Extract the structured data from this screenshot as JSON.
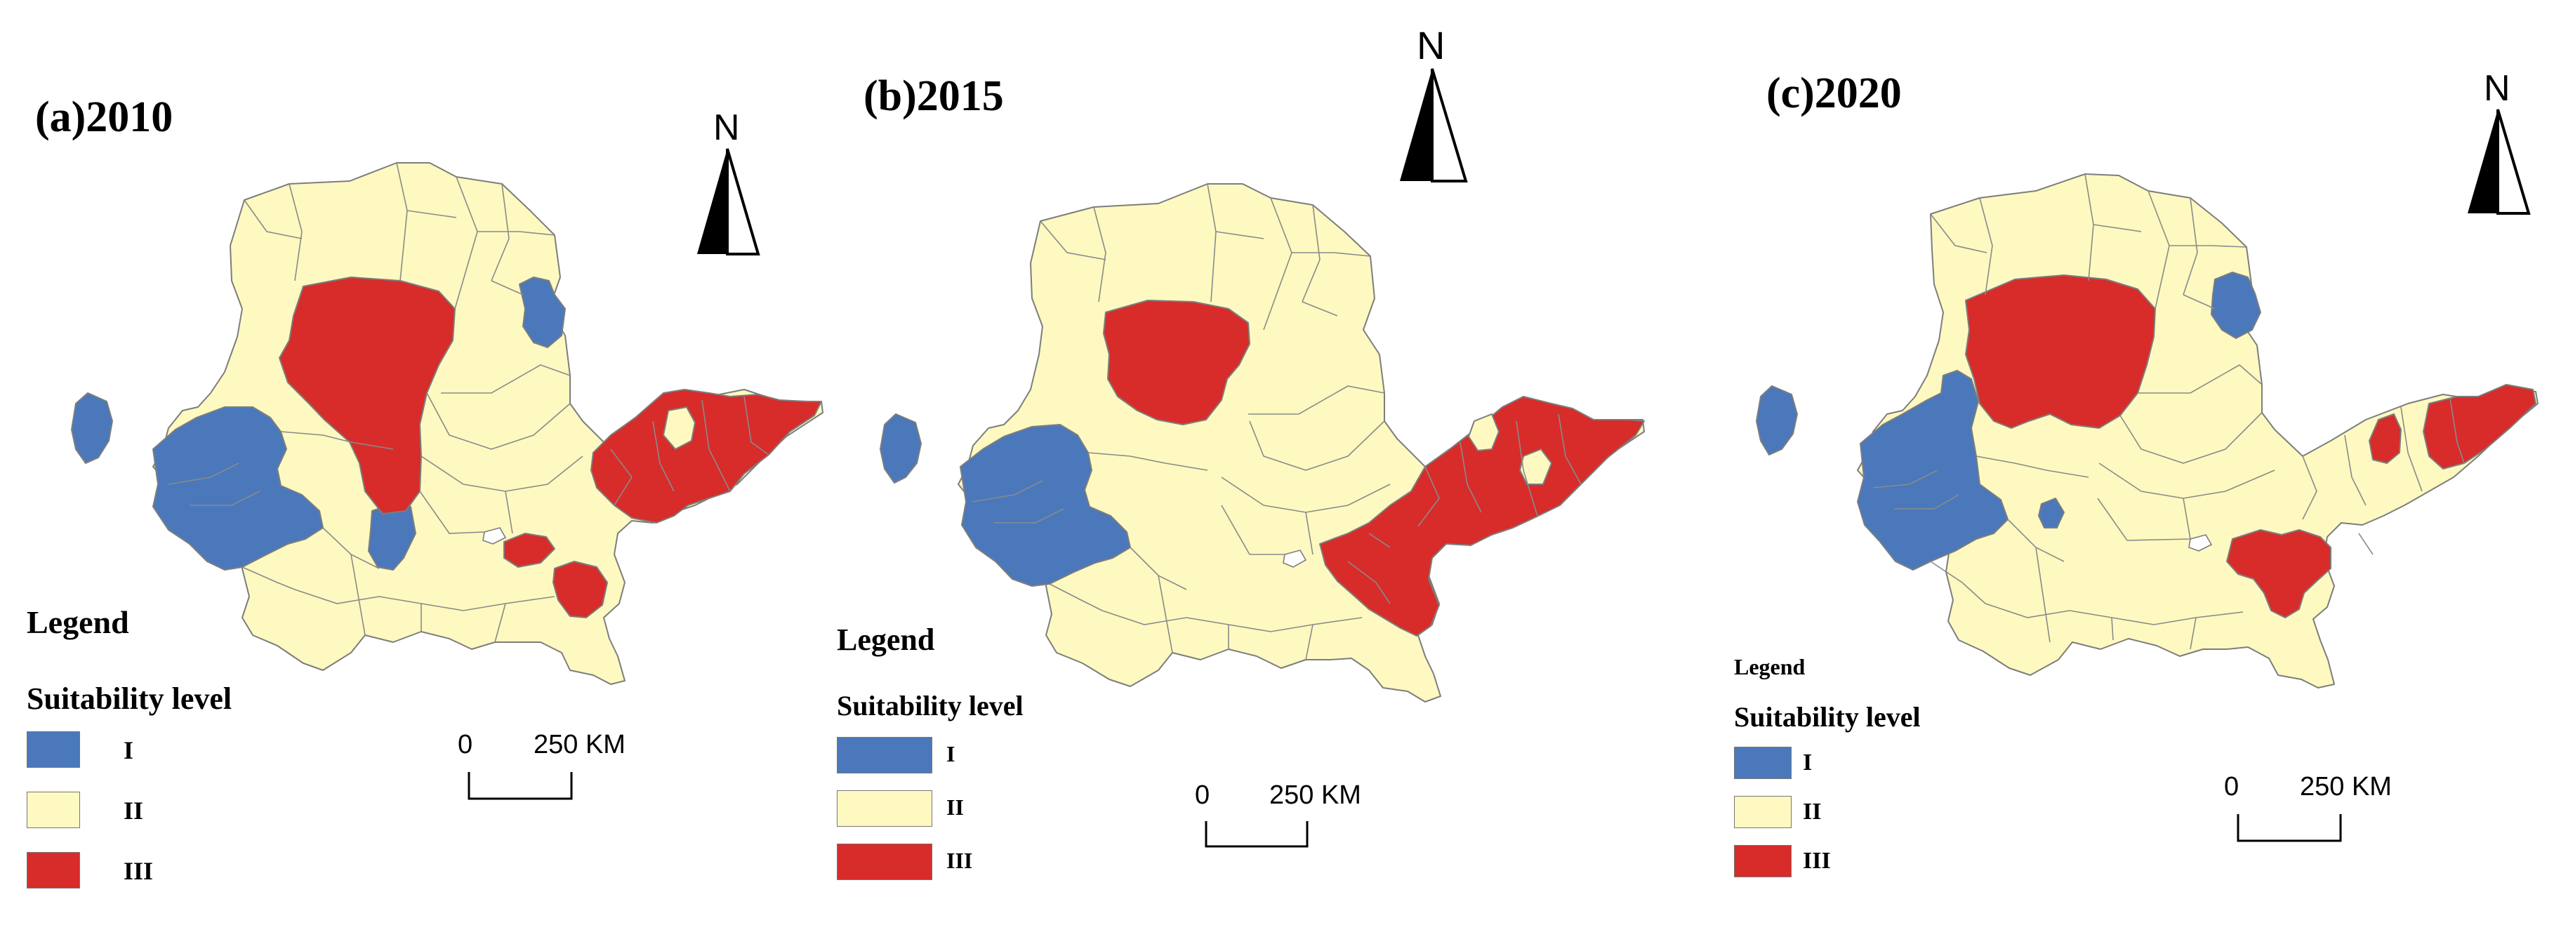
{
  "panels": [
    {
      "title": "(a)2010"
    },
    {
      "title": "(b)2015"
    },
    {
      "title": "(c)2020"
    }
  ],
  "legend": {
    "title": "Legend",
    "subtitle": "Suitability level",
    "items": [
      {
        "label": "I",
        "color": "#4a78bb"
      },
      {
        "label": "II",
        "color": "#fdf9c0"
      },
      {
        "label": "III",
        "color": "#d72c2a"
      }
    ]
  },
  "north_arrow": {
    "letter": "N",
    "icon": "north-arrow-icon"
  },
  "scale_bar": {
    "zero": "0",
    "distance": "250 KM"
  },
  "colors": {
    "level_I": "#4a78bb",
    "level_II": "#fdf9c0",
    "level_III": "#d72c2a",
    "border": "#7d7d7d"
  }
}
